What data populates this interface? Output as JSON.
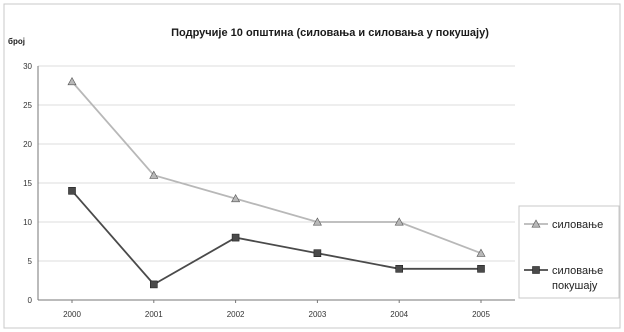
{
  "chart_data": {
    "type": "line",
    "title": "Подручије 10 општина (силовања и силовања у покушају)",
    "ylabel": "број",
    "xlabel": "",
    "x": [
      "2000",
      "2001",
      "2002",
      "2003",
      "2004",
      "2005"
    ],
    "ylim": [
      0,
      30
    ],
    "yticks": [
      "0",
      "5",
      "10",
      "15",
      "20",
      "25",
      "30"
    ],
    "grid": true,
    "legend_position": "right",
    "series": [
      {
        "name": "силовање",
        "marker": "triangle",
        "color": "#b8b8b8",
        "values": [
          28,
          16,
          13,
          10,
          10,
          6
        ]
      },
      {
        "name": "силовање у покушају",
        "legend_lines": [
          "силовање",
          "покушају"
        ],
        "marker": "square",
        "color": "#4a4a4a",
        "values": [
          14,
          2,
          8,
          6,
          4,
          4
        ]
      }
    ]
  }
}
